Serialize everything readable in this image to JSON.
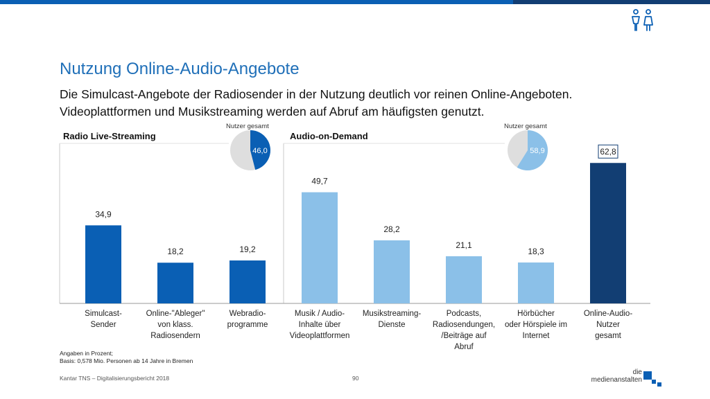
{
  "header": {
    "title": "Nutzung Online-Audio-Angebote",
    "subtitle": "Die Simulcast-Angebote der Radiosender in der Nutzung deutlich vor reinen Online-Angeboten. Videoplattformen und Musikstreaming werden auf Abruf am häufigsten genutzt."
  },
  "colors": {
    "brand_blue": "#0a5fb4",
    "light_blue": "#8bc0e8",
    "dark_navy": "#123e73",
    "pie_rest": "#dedede"
  },
  "chart_data": {
    "type": "bar",
    "ylim": [
      0,
      70
    ],
    "groups": [
      {
        "name": "Radio Live-Streaming",
        "pie_label": "Nutzer gesamt",
        "pie_value": 46.0,
        "pie_display": "46,0"
      },
      {
        "name": "Audio-on-Demand",
        "pie_label": "Nutzer gesamt",
        "pie_value": 58.9,
        "pie_display": "58,9"
      }
    ],
    "categories": [
      [
        "Simulcast-",
        "Sender"
      ],
      [
        "Online-\"Ableger\"",
        "von klass.",
        "Radiosendern"
      ],
      [
        "Webradio-",
        "programme"
      ],
      [
        "Musik / Audio-",
        "Inhalte über",
        "Videoplattformen"
      ],
      [
        "Musikstreaming-",
        "Dienste"
      ],
      [
        "Podcasts,",
        "Radiosendungen,",
        "/Beiträge auf",
        "Abruf"
      ],
      [
        "Hörbücher",
        "oder Hörspiele im",
        "Internet"
      ],
      [
        "Online-Audio-",
        "Nutzer",
        "gesamt"
      ]
    ],
    "values": [
      34.9,
      18.2,
      19.2,
      49.7,
      28.2,
      21.1,
      18.3,
      62.8
    ],
    "value_labels": [
      "34,9",
      "18,2",
      "19,2",
      "49,7",
      "28,2",
      "21,1",
      "18,3",
      "62,8"
    ],
    "bar_groups": [
      0,
      0,
      0,
      1,
      1,
      1,
      1,
      2
    ]
  },
  "footnote": {
    "line1": "Angaben in Prozent;",
    "line2": "Basis: 0,578 Mio. Personen ab 14 Jahre in Bremen"
  },
  "footer": {
    "source": "Kantar TNS – Digitalisierungsbericht 2018",
    "page": "90",
    "logo_line1": "die",
    "logo_line2": "medienanstalten"
  }
}
